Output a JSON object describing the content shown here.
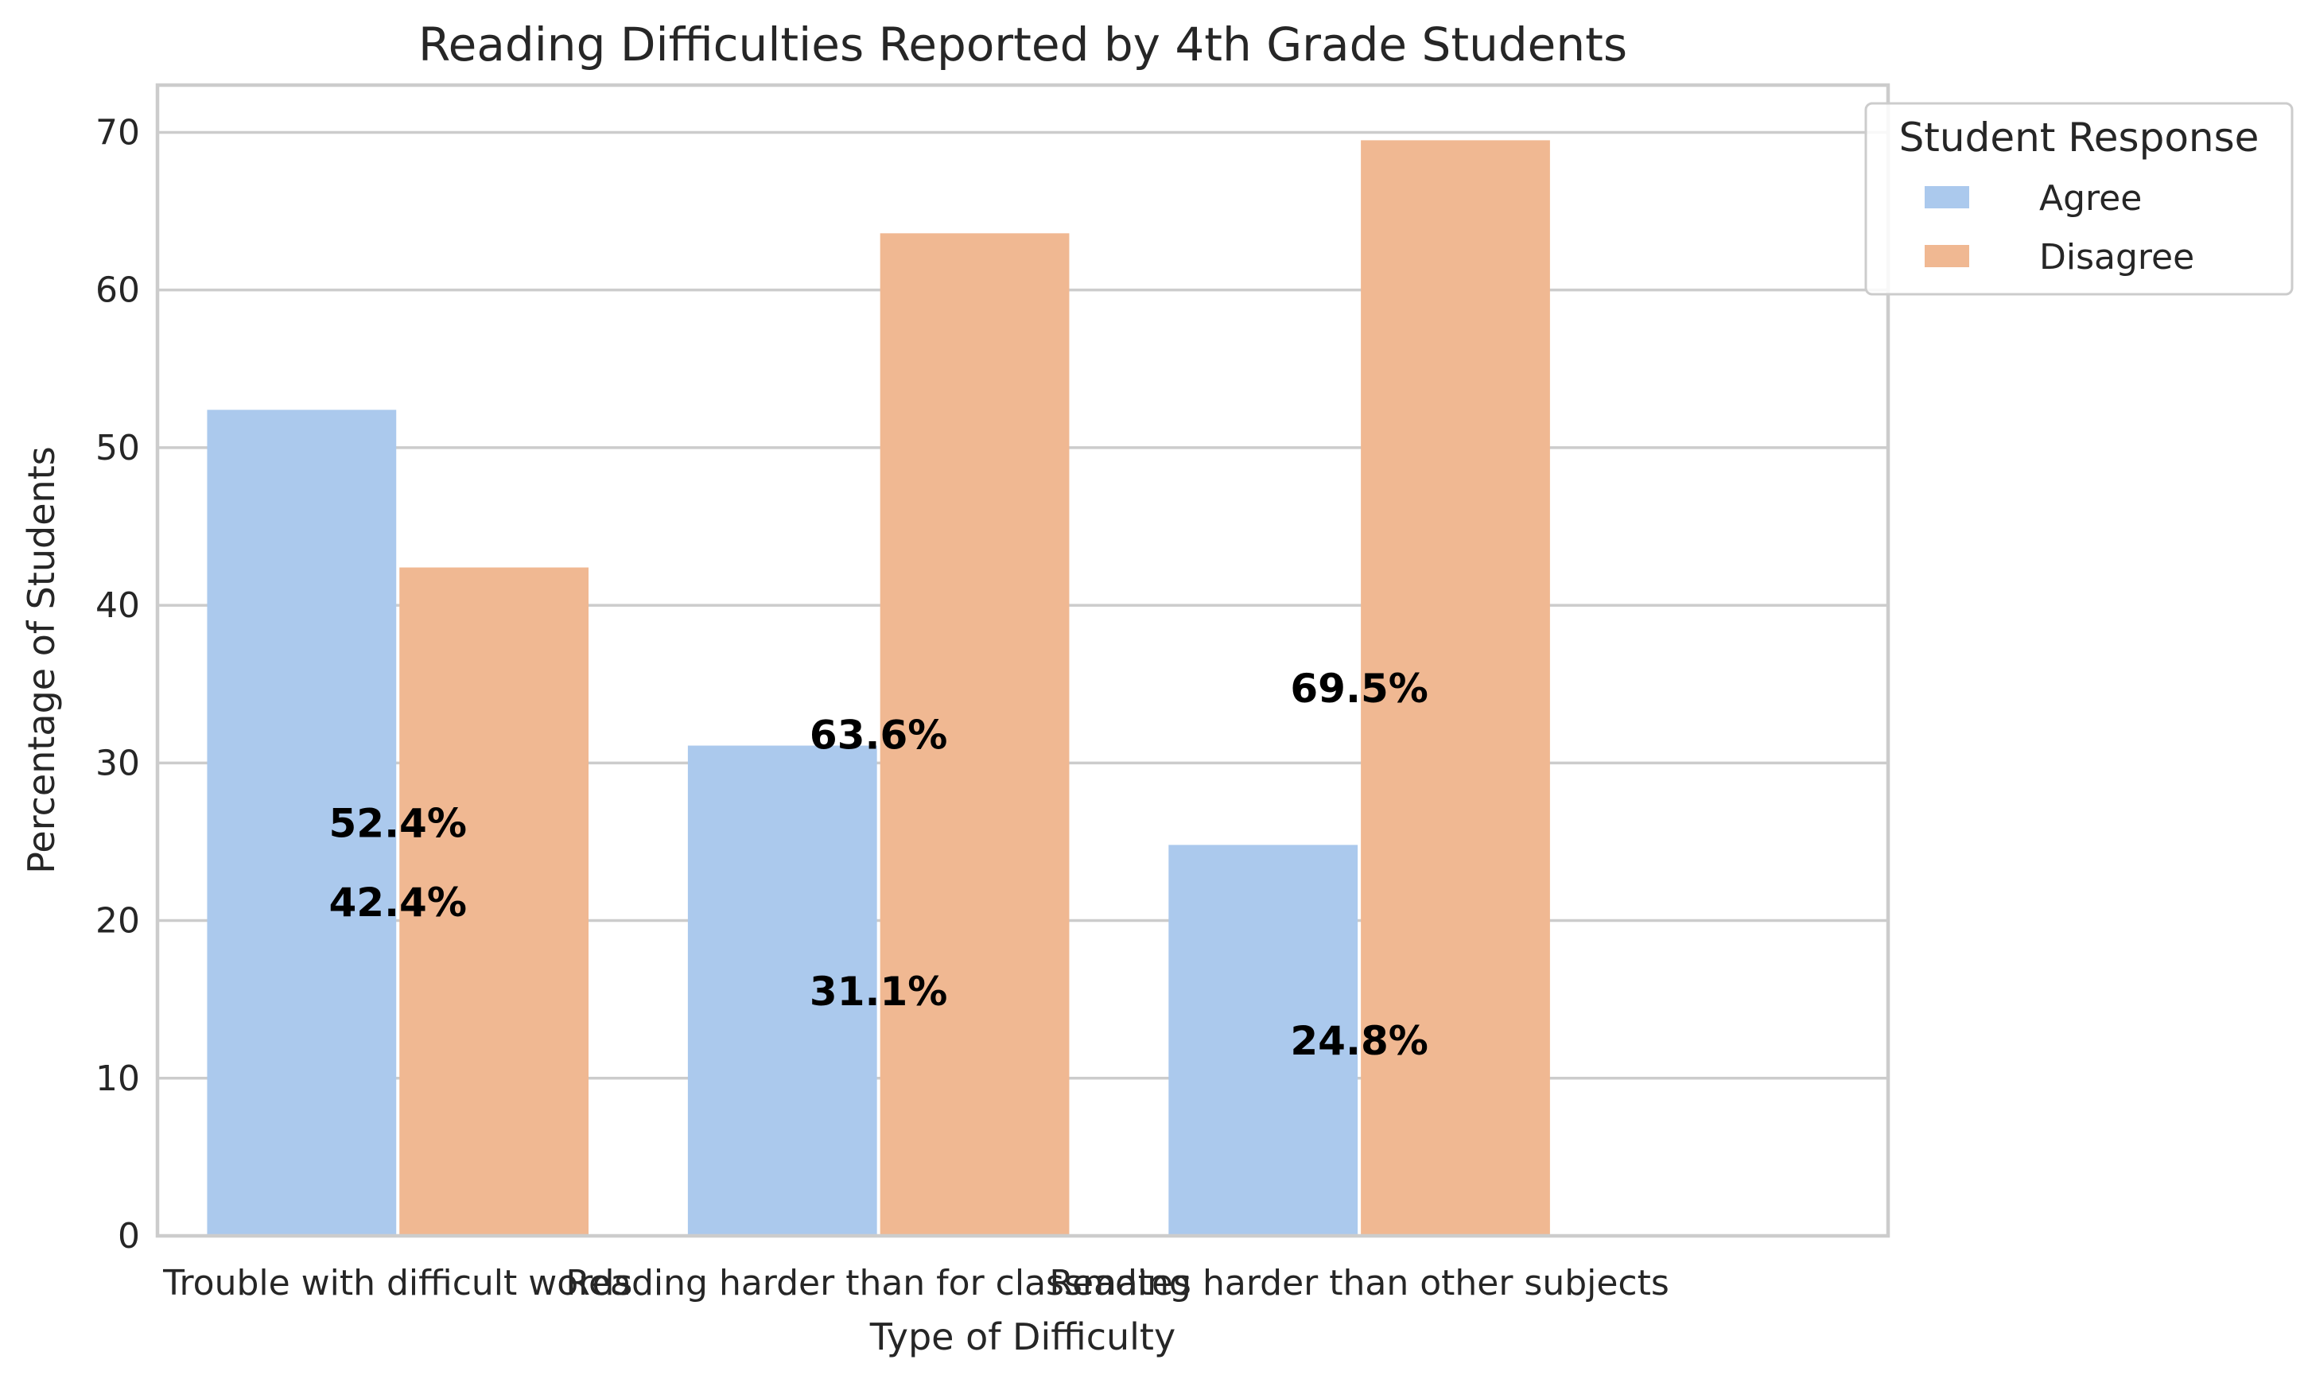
{
  "chart_data": {
    "type": "bar",
    "title": "Reading Difficulties Reported by 4th Grade Students",
    "xlabel": "Type of Difficulty",
    "ylabel": "Percentage of Students",
    "categories": [
      "Trouble with difficult words",
      "Reading harder than for classmates",
      "Reading harder than other subjects"
    ],
    "series": [
      {
        "name": "Agree",
        "color": "#abc9ed",
        "values": [
          52.4,
          31.1,
          24.8
        ]
      },
      {
        "name": "Disagree",
        "color": "#f0b892",
        "values": [
          42.4,
          63.6,
          69.5
        ]
      }
    ],
    "data_labels": [
      {
        "text": "52.4%",
        "category_index": 0,
        "y": 26.2
      },
      {
        "text": "42.4%",
        "category_index": 0,
        "y": 21.2
      },
      {
        "text": "63.6%",
        "category_index": 1,
        "y": 31.8
      },
      {
        "text": "31.1%",
        "category_index": 1,
        "y": 15.55
      },
      {
        "text": "69.5%",
        "category_index": 2,
        "y": 34.75
      },
      {
        "text": "24.8%",
        "category_index": 2,
        "y": 12.4
      }
    ],
    "yticks": [
      0,
      10,
      20,
      30,
      40,
      50,
      60,
      70
    ],
    "ylim": [
      0,
      73
    ],
    "grid": true,
    "legend": {
      "title": "Student Response",
      "placement": "outside-top-right"
    }
  }
}
